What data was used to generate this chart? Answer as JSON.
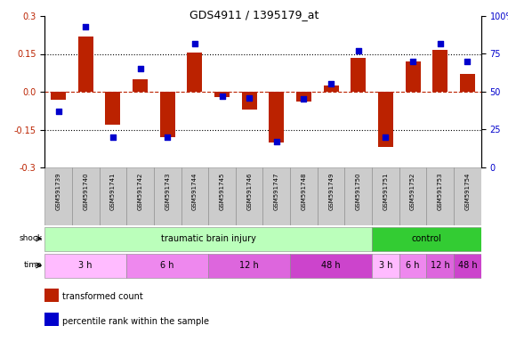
{
  "title": "GDS4911 / 1395179_at",
  "samples": [
    "GSM591739",
    "GSM591740",
    "GSM591741",
    "GSM591742",
    "GSM591743",
    "GSM591744",
    "GSM591745",
    "GSM591746",
    "GSM591747",
    "GSM591748",
    "GSM591749",
    "GSM591750",
    "GSM591751",
    "GSM591752",
    "GSM591753",
    "GSM591754"
  ],
  "bar_values": [
    -0.03,
    0.22,
    -0.13,
    0.05,
    -0.18,
    0.155,
    -0.02,
    -0.07,
    -0.2,
    -0.04,
    0.025,
    0.135,
    -0.22,
    0.12,
    0.165,
    0.07
  ],
  "blue_values": [
    37,
    93,
    20,
    65,
    20,
    82,
    47,
    46,
    17,
    45,
    55,
    77,
    20,
    70,
    82,
    70
  ],
  "ylim_left": [
    -0.3,
    0.3
  ],
  "ylim_right": [
    0,
    100
  ],
  "yticks_left": [
    -0.3,
    -0.15,
    0.0,
    0.15,
    0.3
  ],
  "yticks_right": [
    0,
    25,
    50,
    75,
    100
  ],
  "hlines_dotted": [
    0.15,
    -0.15
  ],
  "bar_color": "#bb2200",
  "blue_color": "#0000cc",
  "shock_groups": [
    {
      "label": "traumatic brain injury",
      "start": 0,
      "end": 11,
      "color": "#bbffbb"
    },
    {
      "label": "control",
      "start": 12,
      "end": 15,
      "color": "#33cc33"
    }
  ],
  "time_groups": [
    {
      "label": "3 h",
      "start": 0,
      "end": 2,
      "color": "#ffbbff"
    },
    {
      "label": "6 h",
      "start": 3,
      "end": 5,
      "color": "#ee88ee"
    },
    {
      "label": "12 h",
      "start": 6,
      "end": 8,
      "color": "#dd66dd"
    },
    {
      "label": "48 h",
      "start": 9,
      "end": 11,
      "color": "#cc44cc"
    },
    {
      "label": "3 h",
      "start": 12,
      "end": 12,
      "color": "#ffbbff"
    },
    {
      "label": "6 h",
      "start": 13,
      "end": 13,
      "color": "#ee88ee"
    },
    {
      "label": "12 h",
      "start": 14,
      "end": 14,
      "color": "#dd66dd"
    },
    {
      "label": "48 h",
      "start": 15,
      "end": 15,
      "color": "#cc44cc"
    }
  ],
  "sample_bg": "#cccccc",
  "bar_width": 0.55
}
